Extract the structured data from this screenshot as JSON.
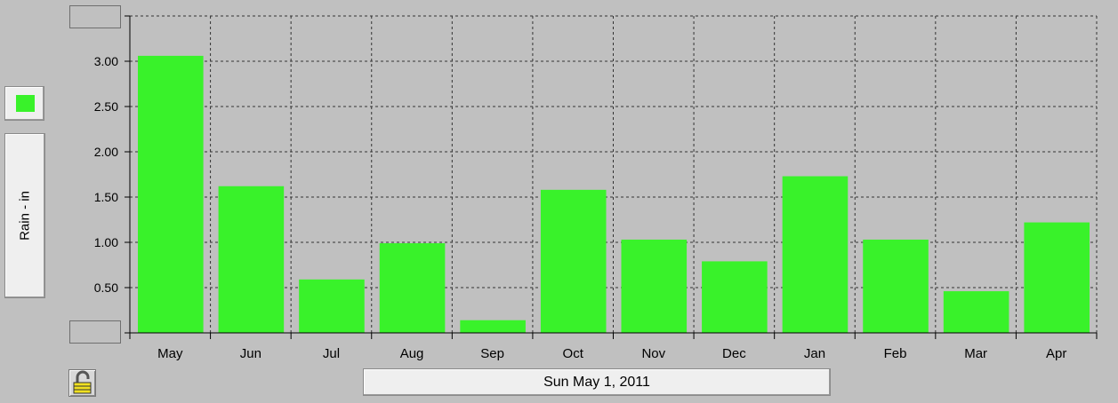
{
  "chart_data": {
    "type": "bar",
    "categories": [
      "May",
      "Jun",
      "Jul",
      "Aug",
      "Sep",
      "Oct",
      "Nov",
      "Dec",
      "Jan",
      "Feb",
      "Mar",
      "Apr"
    ],
    "values": [
      3.06,
      1.62,
      0.59,
      0.99,
      0.14,
      1.58,
      1.03,
      0.79,
      1.73,
      1.03,
      0.46,
      1.22
    ],
    "ylabel": "Rain - in",
    "ylim": [
      0,
      3.5
    ],
    "yticks": [
      "0.00",
      "0.50",
      "1.00",
      "1.50",
      "2.00",
      "2.50",
      "3.00",
      "3.50"
    ],
    "grid": true,
    "bar_color": "#39f22a",
    "legend_placement": "left"
  },
  "footer": {
    "date_label": "Sun May 1, 2011"
  },
  "icons": {
    "lock": "lock-icon"
  }
}
